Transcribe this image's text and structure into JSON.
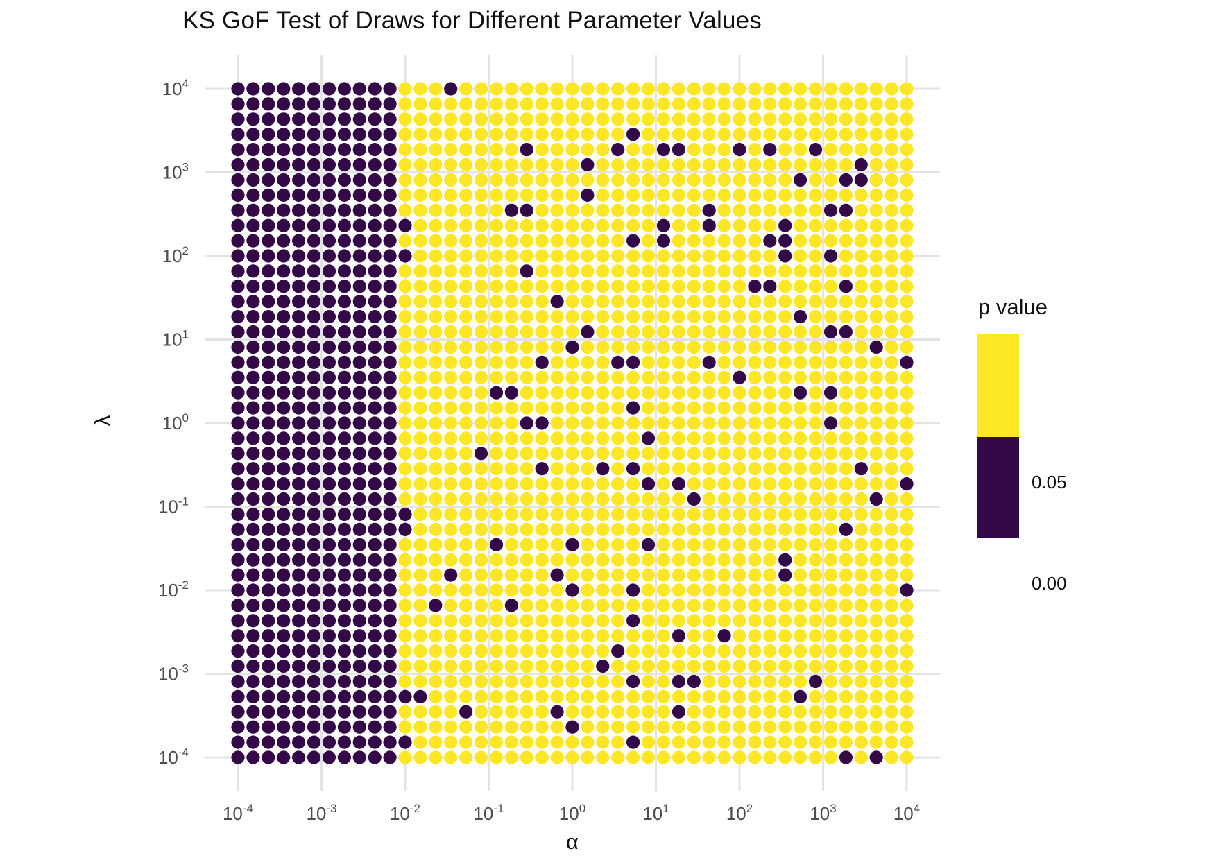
{
  "title": "KS GoF Test of Draws for Different Parameter Values",
  "axes": {
    "x_label": "α",
    "y_label": "λ",
    "x_tick_exponents": [
      -4,
      -3,
      -2,
      -1,
      0,
      1,
      2,
      3,
      4
    ],
    "y_tick_exponents": [
      4,
      3,
      2,
      1,
      0,
      -1,
      -2,
      -3,
      -4
    ],
    "tick_base": "10"
  },
  "legend": {
    "title": "p value",
    "threshold_label": "0.05",
    "min_label": "0.00",
    "above_color": "#FDE725",
    "below_color": "#330A47"
  },
  "chart_data": {
    "type": "scatter",
    "title": "KS GoF Test of Draws for Different Parameter Values",
    "xlabel": "α",
    "ylabel": "λ",
    "x_scale": "log10",
    "y_scale": "log10",
    "x_range_exponents": [
      -4,
      4
    ],
    "y_range_exponents": [
      -4,
      4
    ],
    "grid_n": 45,
    "p_threshold": 0.05,
    "legend_title": "p value",
    "legend_labels": [
      "0.05",
      "0.00"
    ],
    "color_above_threshold": "#FDE725",
    "color_below_threshold": "#330A47",
    "grid_line_color": "#E3E3E3",
    "tick_text_color": "#4D4D4D",
    "note": "45x45 grid of KS-test p-values over log-spaced (alpha, lambda); cells given as [col_from_left, row_from_top]; all columns 0-10 (alpha <= ~10^-2.2) are below threshold (dark); remaining cells above threshold (yellow) except scattered dark cells listed.",
    "dark_block_col_count": 11,
    "scattered_dark_cells": [
      [
        14,
        0
      ],
      [
        26,
        3
      ],
      [
        19,
        4
      ],
      [
        25,
        4
      ],
      [
        28,
        4
      ],
      [
        29,
        4
      ],
      [
        33,
        4
      ],
      [
        35,
        4
      ],
      [
        38,
        4
      ],
      [
        23,
        5
      ],
      [
        41,
        5
      ],
      [
        37,
        6
      ],
      [
        40,
        6
      ],
      [
        41,
        6
      ],
      [
        23,
        7
      ],
      [
        18,
        8
      ],
      [
        19,
        8
      ],
      [
        31,
        8
      ],
      [
        39,
        8
      ],
      [
        40,
        8
      ],
      [
        11,
        9
      ],
      [
        28,
        9
      ],
      [
        31,
        9
      ],
      [
        36,
        9
      ],
      [
        26,
        10
      ],
      [
        28,
        10
      ],
      [
        35,
        10
      ],
      [
        36,
        10
      ],
      [
        11,
        11
      ],
      [
        36,
        11
      ],
      [
        39,
        11
      ],
      [
        19,
        12
      ],
      [
        34,
        13
      ],
      [
        35,
        13
      ],
      [
        40,
        13
      ],
      [
        21,
        14
      ],
      [
        37,
        15
      ],
      [
        23,
        16
      ],
      [
        39,
        16
      ],
      [
        40,
        16
      ],
      [
        22,
        17
      ],
      [
        42,
        17
      ],
      [
        20,
        18
      ],
      [
        25,
        18
      ],
      [
        26,
        18
      ],
      [
        31,
        18
      ],
      [
        44,
        18
      ],
      [
        33,
        19
      ],
      [
        17,
        20
      ],
      [
        18,
        20
      ],
      [
        37,
        20
      ],
      [
        39,
        20
      ],
      [
        26,
        21
      ],
      [
        19,
        22
      ],
      [
        20,
        22
      ],
      [
        39,
        22
      ],
      [
        27,
        23
      ],
      [
        16,
        24
      ],
      [
        20,
        25
      ],
      [
        24,
        25
      ],
      [
        26,
        25
      ],
      [
        41,
        25
      ],
      [
        27,
        26
      ],
      [
        29,
        26
      ],
      [
        44,
        26
      ],
      [
        30,
        27
      ],
      [
        42,
        27
      ],
      [
        11,
        28
      ],
      [
        11,
        29
      ],
      [
        40,
        29
      ],
      [
        17,
        30
      ],
      [
        22,
        30
      ],
      [
        27,
        30
      ],
      [
        36,
        31
      ],
      [
        14,
        32
      ],
      [
        21,
        32
      ],
      [
        36,
        32
      ],
      [
        22,
        33
      ],
      [
        26,
        33
      ],
      [
        44,
        33
      ],
      [
        13,
        34
      ],
      [
        18,
        34
      ],
      [
        26,
        35
      ],
      [
        29,
        36
      ],
      [
        32,
        36
      ],
      [
        25,
        37
      ],
      [
        24,
        38
      ],
      [
        26,
        39
      ],
      [
        29,
        39
      ],
      [
        30,
        39
      ],
      [
        38,
        39
      ],
      [
        11,
        40
      ],
      [
        12,
        40
      ],
      [
        37,
        40
      ],
      [
        15,
        41
      ],
      [
        21,
        41
      ],
      [
        29,
        41
      ],
      [
        22,
        42
      ],
      [
        11,
        43
      ],
      [
        26,
        43
      ],
      [
        40,
        44
      ],
      [
        42,
        44
      ]
    ]
  }
}
